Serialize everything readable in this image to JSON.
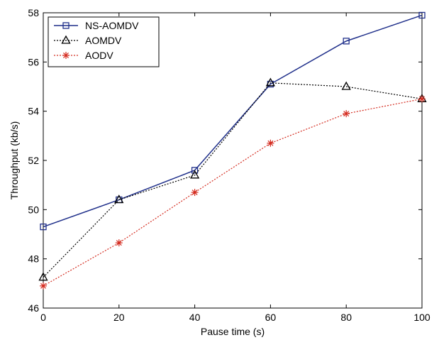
{
  "chart_data": {
    "type": "line",
    "title": "",
    "xlabel": "Pause time (s)",
    "ylabel": "Throughput (kb/s)",
    "x": [
      0,
      20,
      40,
      60,
      80,
      100
    ],
    "xlim": [
      0,
      100
    ],
    "ylim": [
      46,
      58
    ],
    "xticks": [
      0,
      20,
      40,
      60,
      80,
      100
    ],
    "yticks": [
      46,
      48,
      50,
      52,
      54,
      56,
      58
    ],
    "grid": false,
    "legend_position": "top-left",
    "series": [
      {
        "name": "NS-AOMDV",
        "values": [
          49.3,
          50.4,
          51.6,
          55.1,
          56.85,
          57.9
        ],
        "color": "#1f2f8a",
        "marker": "square",
        "line_style": "solid"
      },
      {
        "name": "AOMDV",
        "values": [
          47.25,
          50.4,
          51.4,
          55.15,
          55.0,
          54.5
        ],
        "color": "#000000",
        "marker": "triangle",
        "line_style": "dotted"
      },
      {
        "name": "AODV",
        "values": [
          46.9,
          48.65,
          50.7,
          52.7,
          53.9,
          54.5
        ],
        "color": "#d42a1e",
        "marker": "asterisk",
        "line_style": "dotted"
      }
    ]
  }
}
